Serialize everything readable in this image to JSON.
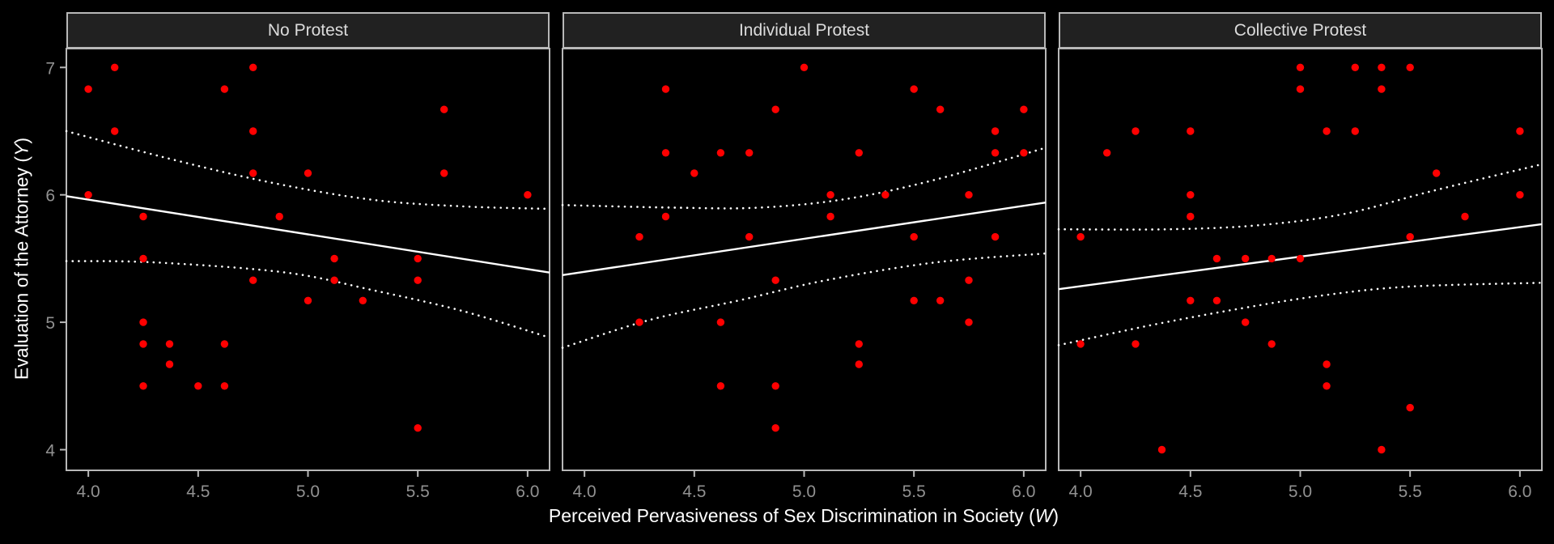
{
  "figure": {
    "background": "#000000",
    "panel_border_color": "#b8b8b8",
    "strip_fill": "#212121",
    "strip_text_color": "#dcdcdc",
    "tick_label_color": "#919191",
    "axis_title_color": "#ffffff",
    "point_color": "#ff0000",
    "line_color": "#ffffff"
  },
  "chart_data": {
    "type": "scatter",
    "xlabel_prefix": "Perceived Pervasiveness of Sex Discrimination in Society (",
    "xlabel_var": "W",
    "ylabel_prefix": "Evaluation of the Attorney (",
    "ylabel_var": "Y",
    "label_suffix": ")",
    "xlim": [
      3.9,
      6.1
    ],
    "ylim": [
      3.838,
      7.148
    ],
    "x_ticks": [
      4.0,
      4.5,
      5.0,
      5.5,
      6.0
    ],
    "x_tick_labels": [
      "4.0",
      "4.5",
      "5.0",
      "5.5",
      "6.0"
    ],
    "y_ticks": [
      4,
      5,
      6,
      7
    ],
    "y_tick_labels": [
      "4",
      "5",
      "6",
      "7"
    ],
    "grid": "off",
    "legend": "none",
    "facets": [
      {
        "label": "No Protest",
        "points": [
          [
            4.12,
            7
          ],
          [
            4.75,
            7
          ],
          [
            4,
            6.83
          ],
          [
            4.62,
            6.83
          ],
          [
            5.62,
            6.67
          ],
          [
            4.12,
            6.5
          ],
          [
            4.75,
            6.5
          ],
          [
            4.75,
            6.17
          ],
          [
            5,
            6.17
          ],
          [
            5.62,
            6.17
          ],
          [
            4,
            6
          ],
          [
            6,
            6
          ],
          [
            4.25,
            5.83
          ],
          [
            4.87,
            5.83
          ],
          [
            4.25,
            5.5
          ],
          [
            5.12,
            5.5
          ],
          [
            5.5,
            5.5
          ],
          [
            4.75,
            5.33
          ],
          [
            5.12,
            5.33
          ],
          [
            5.5,
            5.33
          ],
          [
            5,
            5.17
          ],
          [
            5.25,
            5.17
          ],
          [
            4.25,
            5
          ],
          [
            4.25,
            4.83
          ],
          [
            4.37,
            4.83
          ],
          [
            4.62,
            4.83
          ],
          [
            4.37,
            4.67
          ],
          [
            4.25,
            4.5
          ],
          [
            4.5,
            4.5
          ],
          [
            4.62,
            4.5
          ],
          [
            5.5,
            4.17
          ]
        ],
        "fit_line": [
          [
            3.9,
            5.99
          ],
          [
            6.1,
            5.39
          ]
        ],
        "upper_band": [
          [
            3.9,
            6.5
          ],
          [
            4.4,
            6.27
          ],
          [
            4.85,
            6.09
          ],
          [
            5.3,
            5.96
          ],
          [
            5.7,
            5.91
          ],
          [
            6.1,
            5.89
          ]
        ],
        "lower_band": [
          [
            3.9,
            5.48
          ],
          [
            4.3,
            5.47
          ],
          [
            4.9,
            5.39
          ],
          [
            5.3,
            5.25
          ],
          [
            5.7,
            5.09
          ],
          [
            6.1,
            4.88
          ]
        ]
      },
      {
        "label": "Individual Protest",
        "points": [
          [
            5,
            7
          ],
          [
            4.37,
            6.83
          ],
          [
            5.5,
            6.83
          ],
          [
            4.87,
            6.67
          ],
          [
            5.62,
            6.67
          ],
          [
            6,
            6.67
          ],
          [
            5.87,
            6.5
          ],
          [
            4.37,
            6.33
          ],
          [
            4.62,
            6.33
          ],
          [
            4.75,
            6.33
          ],
          [
            5.25,
            6.33
          ],
          [
            5.87,
            6.33
          ],
          [
            6,
            6.33
          ],
          [
            4.5,
            6.17
          ],
          [
            5.12,
            6
          ],
          [
            5.37,
            6
          ],
          [
            5.75,
            6
          ],
          [
            4.37,
            5.83
          ],
          [
            5.12,
            5.83
          ],
          [
            4.25,
            5.67
          ],
          [
            4.75,
            5.67
          ],
          [
            5.5,
            5.67
          ],
          [
            5.87,
            5.67
          ],
          [
            4.87,
            5.33
          ],
          [
            5.75,
            5.33
          ],
          [
            5.5,
            5.17
          ],
          [
            5.62,
            5.17
          ],
          [
            4.25,
            5
          ],
          [
            4.62,
            5
          ],
          [
            5.75,
            5
          ],
          [
            5.25,
            4.83
          ],
          [
            5.25,
            4.67
          ],
          [
            4.62,
            4.5
          ],
          [
            4.87,
            4.5
          ],
          [
            4.87,
            4.17
          ]
        ],
        "fit_line": [
          [
            3.9,
            5.37
          ],
          [
            6.1,
            5.94
          ]
        ],
        "upper_band": [
          [
            3.9,
            5.92
          ],
          [
            4.4,
            5.9
          ],
          [
            4.8,
            5.9
          ],
          [
            5.2,
            5.97
          ],
          [
            5.6,
            6.12
          ],
          [
            6.1,
            6.37
          ]
        ],
        "lower_band": [
          [
            3.9,
            4.8
          ],
          [
            4.3,
            5.02
          ],
          [
            4.7,
            5.17
          ],
          [
            5.1,
            5.33
          ],
          [
            5.6,
            5.47
          ],
          [
            6.1,
            5.54
          ]
        ]
      },
      {
        "label": "Collective Protest",
        "points": [
          [
            5,
            7
          ],
          [
            5.25,
            7
          ],
          [
            5.37,
            7
          ],
          [
            5.5,
            7
          ],
          [
            5,
            6.83
          ],
          [
            5.37,
            6.83
          ],
          [
            4.25,
            6.5
          ],
          [
            4.5,
            6.5
          ],
          [
            5.12,
            6.5
          ],
          [
            5.25,
            6.5
          ],
          [
            6,
            6.5
          ],
          [
            4.12,
            6.33
          ],
          [
            5.62,
            6.17
          ],
          [
            4.5,
            6
          ],
          [
            6,
            6
          ],
          [
            4.5,
            5.83
          ],
          [
            5.75,
            5.83
          ],
          [
            4,
            5.67
          ],
          [
            5.5,
            5.67
          ],
          [
            4.62,
            5.5
          ],
          [
            4.75,
            5.5
          ],
          [
            4.87,
            5.5
          ],
          [
            5,
            5.5
          ],
          [
            4.5,
            5.17
          ],
          [
            4.62,
            5.17
          ],
          [
            4.75,
            5
          ],
          [
            4,
            4.83
          ],
          [
            4.25,
            4.83
          ],
          [
            4.87,
            4.83
          ],
          [
            5.12,
            4.67
          ],
          [
            5.12,
            4.5
          ],
          [
            5.5,
            4.33
          ],
          [
            4.37,
            4
          ],
          [
            5.37,
            4
          ]
        ],
        "fit_line": [
          [
            3.9,
            5.26
          ],
          [
            6.1,
            5.77
          ]
        ],
        "upper_band": [
          [
            3.9,
            5.73
          ],
          [
            4.4,
            5.73
          ],
          [
            4.8,
            5.76
          ],
          [
            5.2,
            5.85
          ],
          [
            5.6,
            6.03
          ],
          [
            6.1,
            6.24
          ]
        ],
        "lower_band": [
          [
            3.9,
            4.82
          ],
          [
            4.3,
            4.97
          ],
          [
            4.7,
            5.1
          ],
          [
            5.1,
            5.21
          ],
          [
            5.5,
            5.28
          ],
          [
            6.1,
            5.31
          ]
        ]
      }
    ]
  }
}
